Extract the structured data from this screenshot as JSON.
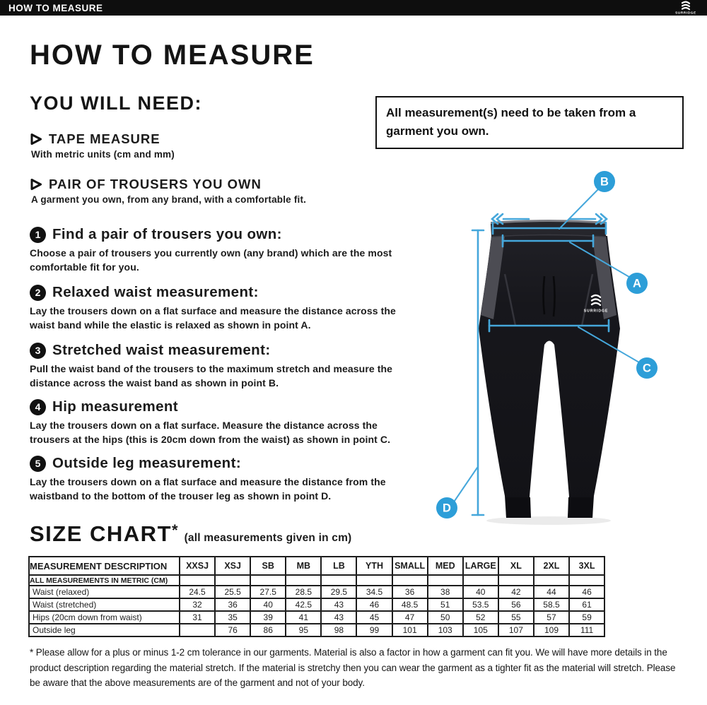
{
  "topbar": {
    "title": "HOW TO MEASURE",
    "brand": "SURRIDGE"
  },
  "page": {
    "title": "HOW TO MEASURE",
    "you_will_need": "YOU WILL NEED:",
    "needs": [
      {
        "label": "TAPE MEASURE",
        "detail": "With metric units (cm and mm)"
      },
      {
        "label": "PAIR OF TROUSERS YOU OWN",
        "detail": "A garment you own, from any brand, with a comfortable fit."
      }
    ],
    "note": "All measurement(s) need to be taken from a garment you own."
  },
  "steps": [
    {
      "num": "1",
      "title": "Find a pair of trousers you own:",
      "body": "Choose a pair of trousers you currently own (any brand) which are the most comfortable fit for you."
    },
    {
      "num": "2",
      "title": "Relaxed waist measurement:",
      "body": "Lay the trousers down on a flat surface and measure the distance across the waist band while the elastic is relaxed as shown in point A."
    },
    {
      "num": "3",
      "title": "Stretched waist measurement:",
      "body": "Pull the waist band of the trousers to the maximum stretch and measure the distance across the waist band as shown in point B."
    },
    {
      "num": "4",
      "title": "Hip measurement",
      "body": "Lay the trousers down on a flat surface. Measure the distance across the trousers at the hips (this is 20cm down from the waist) as shown in point C."
    },
    {
      "num": "5",
      "title": "Outside leg measurement:",
      "body": "Lay the trousers down on a flat surface and measure the distance from the waistband to the bottom of the trouser leg as shown in point D."
    }
  ],
  "diagram": {
    "labels": [
      "A",
      "B",
      "C",
      "D"
    ],
    "garment_brand": "SURRIDGE",
    "accent_color": "#45a7db",
    "marker_color": "#2d9ed8"
  },
  "size_chart": {
    "heading": "SIZE CHART",
    "heading_asterisk": "*",
    "heading_note": "(all measurements given in cm)",
    "columns": [
      "MEASUREMENT DESCRIPTION",
      "XXSJ",
      "XSJ",
      "SB",
      "MB",
      "LB",
      "YTH",
      "SMALL",
      "MED",
      "LARGE",
      "XL",
      "2XL",
      "3XL"
    ],
    "metric_row_label": "ALL MEASUREMENTS IN METRIC (CM)",
    "rows": [
      {
        "label": "Waist (relaxed)",
        "values": [
          "24.5",
          "25.5",
          "27.5",
          "28.5",
          "29.5",
          "34.5",
          "36",
          "38",
          "40",
          "42",
          "44",
          "46"
        ]
      },
      {
        "label": "Waist (stretched)",
        "values": [
          "32",
          "36",
          "40",
          "42.5",
          "43",
          "46",
          "48.5",
          "51",
          "53.5",
          "56",
          "58.5",
          "61"
        ]
      },
      {
        "label": "Hips (20cm down from waist)",
        "values": [
          "31",
          "35",
          "39",
          "41",
          "43",
          "45",
          "47",
          "50",
          "52",
          "55",
          "57",
          "59"
        ]
      },
      {
        "label": "Outside leg",
        "values": [
          "",
          "76",
          "86",
          "95",
          "98",
          "99",
          "101",
          "103",
          "105",
          "107",
          "109",
          "111"
        ]
      }
    ]
  },
  "footnote": "* Please allow for a plus or minus 1-2 cm tolerance in our garments. Material is also a factor in how a garment can fit you. We will have more details in the product description regarding the material stretch. If the material is stretchy then you can wear the garment as a tighter fit as the material will stretch. Please be aware that the above measurements are of the garment and not of your body."
}
